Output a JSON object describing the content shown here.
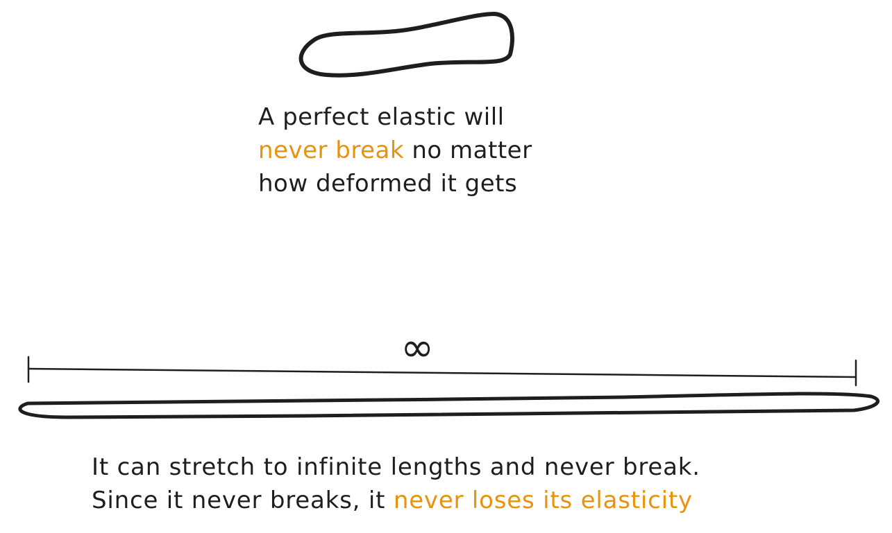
{
  "colors": {
    "ink": "#1e1e1e",
    "accent": "#e8920d",
    "background": "#ffffff"
  },
  "top_caption": {
    "line1": "A perfect elastic will",
    "line2_accent": "never break",
    "line2_rest": " no matter",
    "line3": "how deformed it gets"
  },
  "infinity_label": "∞",
  "bottom_caption": {
    "line1": "It can stretch to infinite lengths and never break.",
    "line2_start": "Since it never breaks, it ",
    "line2_accent": "never loses its elasticity"
  }
}
